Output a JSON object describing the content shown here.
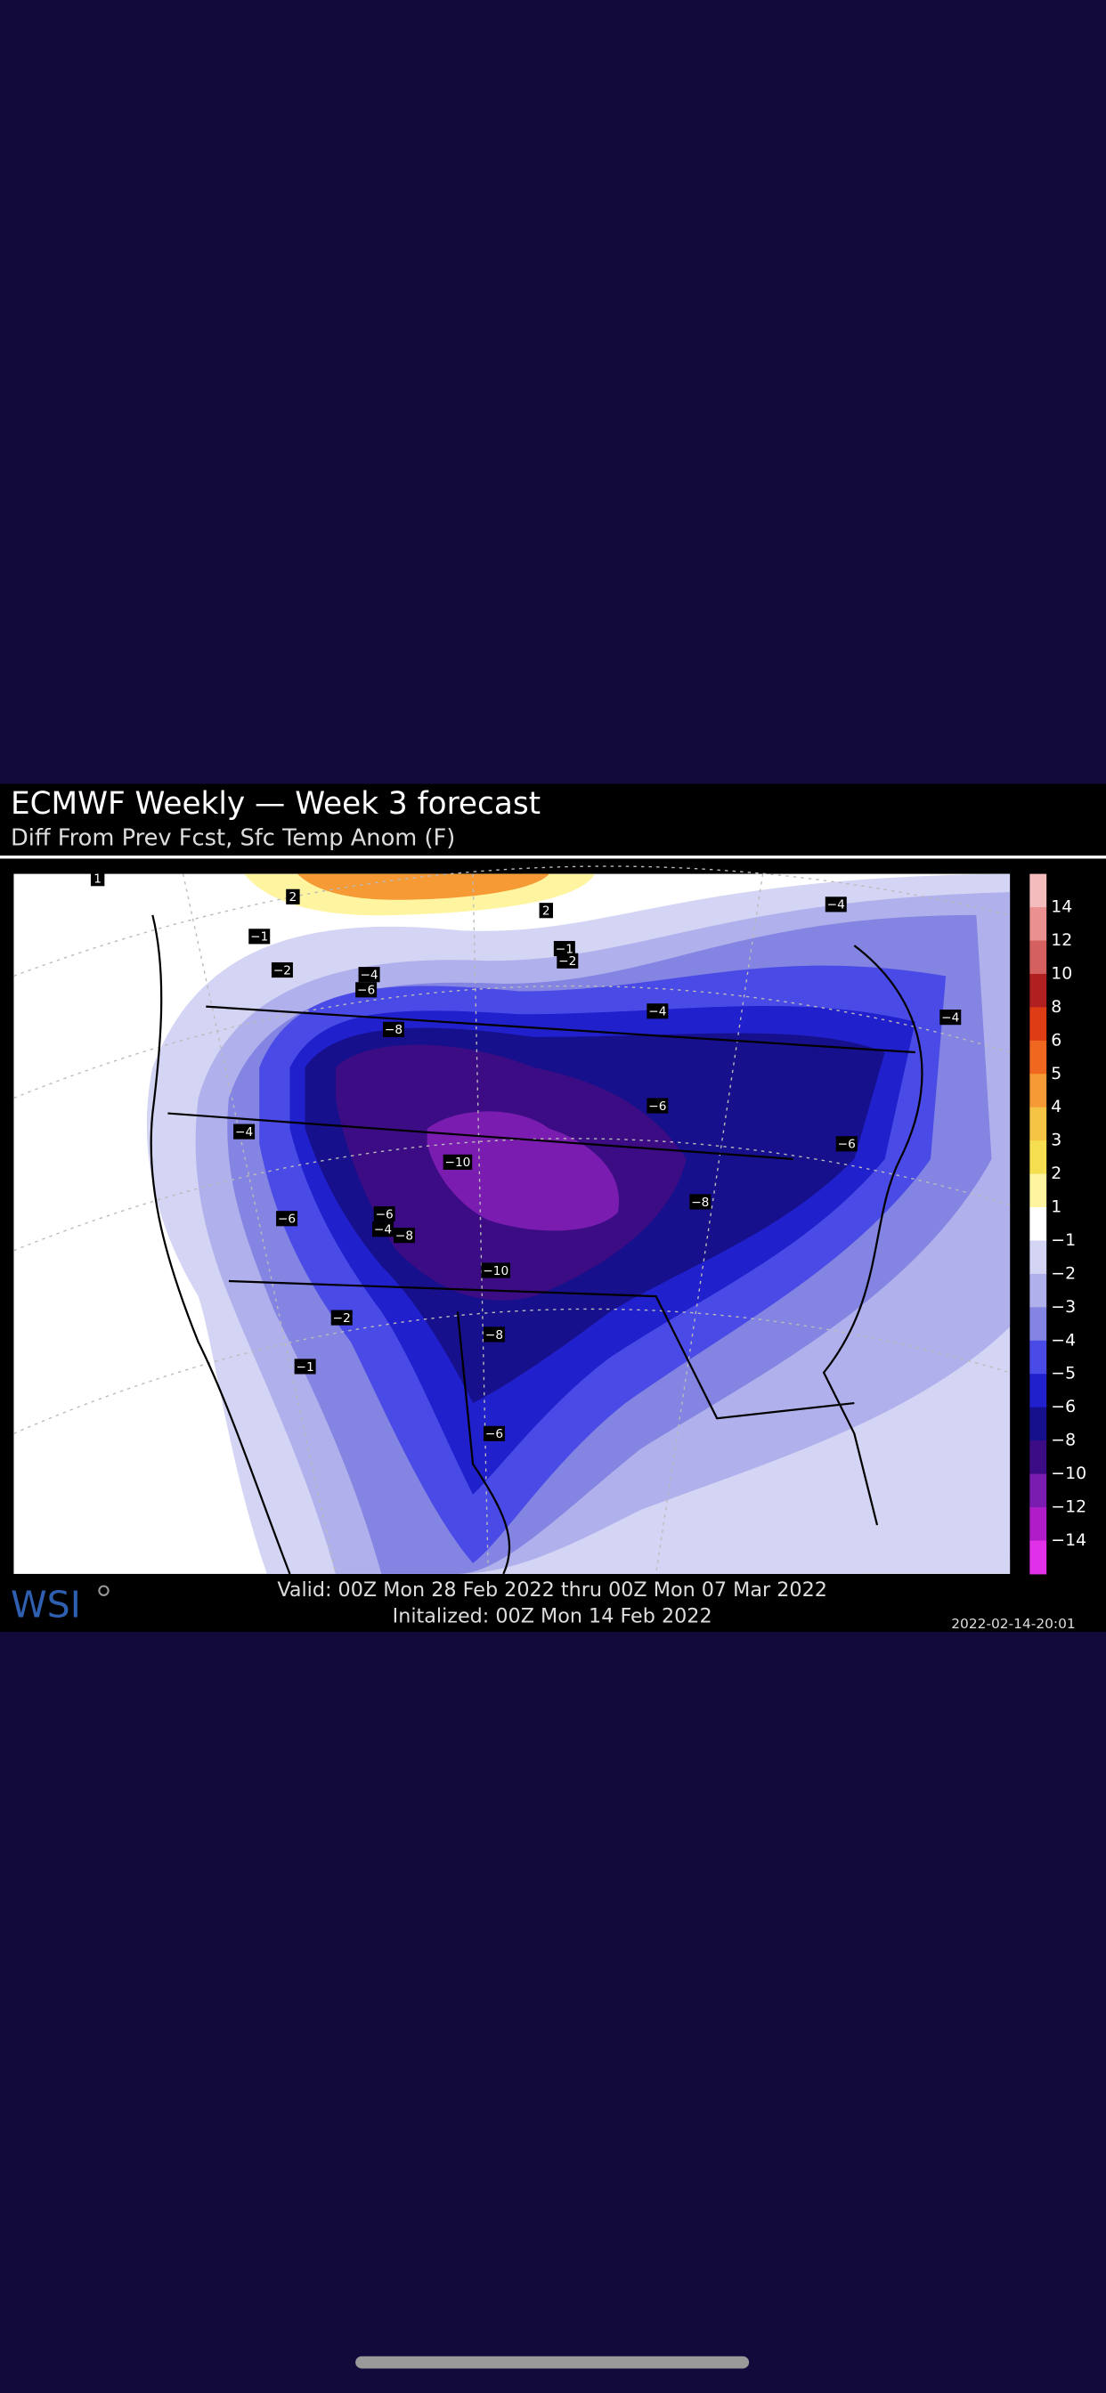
{
  "header": {
    "title": "ECMWF Weekly — Week 3 forecast",
    "subtitle": "Diff From Prev Fcst, Sfc Temp Anom (F)"
  },
  "legend": {
    "colors": [
      "#f4bcbc",
      "#ea9090",
      "#d46060",
      "#b02020",
      "#de3c14",
      "#f06820",
      "#f59a34",
      "#f5c444",
      "#f5de50",
      "#fff4a0",
      "#ffffff",
      "#d4d4f4",
      "#b0b0ec",
      "#8484e2",
      "#4a4ae6",
      "#2020cc",
      "#16108c",
      "#3c0c84",
      "#7a1cb0",
      "#b01cc8",
      "#e030e8"
    ],
    "labels": [
      "14",
      "12",
      "10",
      "8",
      "6",
      "5",
      "4",
      "3",
      "2",
      "1",
      "−1",
      "−2",
      "−3",
      "−4",
      "−5",
      "−6",
      "−8",
      "−10",
      "−12",
      "−14"
    ]
  },
  "map": {
    "contour_labels": [
      "−1",
      "−1",
      "−2",
      "−2",
      "−2",
      "−4",
      "−4",
      "−4",
      "−4",
      "−4",
      "−4",
      "−6",
      "−6",
      "−6",
      "−6",
      "−6",
      "−6",
      "−8",
      "−8",
      "−8",
      "−8",
      "−10",
      "−10",
      "1",
      "2",
      "2",
      "−1"
    ]
  },
  "footer": {
    "logo": "WSI",
    "valid": "Valid: 00Z Mon 28 Feb 2022 thru 00Z Mon 07 Mar 2022",
    "initialized": "Initalized: 00Z Mon 14 Feb 2022",
    "timestamp": "2022-02-14-20:01"
  }
}
